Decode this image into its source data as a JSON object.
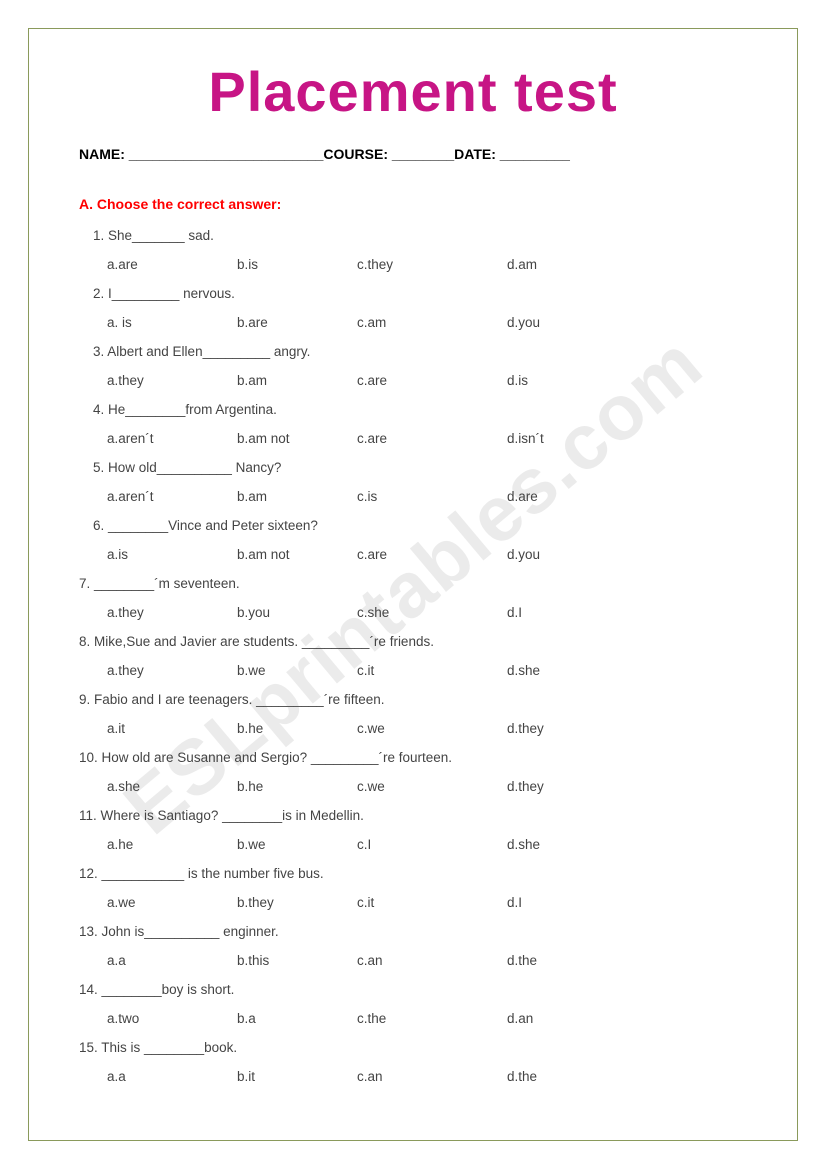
{
  "title": "Placement test",
  "info_line": "NAME: _________________________COURSE: ________DATE: _________",
  "section_header": "A.  Choose the correct answer:",
  "watermark": "ESLprintables.com",
  "colors": {
    "title": "#c71585",
    "section_header": "#ff0000",
    "body_text": "#444444",
    "border": "#8a9a5b",
    "watermark": "rgba(0,0,0,0.08)",
    "background": "#ffffff"
  },
  "fonts": {
    "title_size": 56,
    "body_size": 13.5,
    "info_size": 14
  },
  "questions": [
    {
      "n": "1.",
      "text": "She_______ sad.",
      "indent": true,
      "opts": [
        "a.are",
        "b.is",
        "c.they",
        "d.am"
      ]
    },
    {
      "n": "2.",
      "text": "I_________ nervous.",
      "indent": true,
      "opts": [
        "a. is",
        "b.are",
        "c.am",
        "d.you"
      ]
    },
    {
      "n": "3.",
      "text": "Albert and Ellen_________ angry.",
      "indent": true,
      "opts": [
        "a.they",
        "b.am",
        "c.are",
        "d.is"
      ]
    },
    {
      "n": "4.",
      "text": "He________from Argentina.",
      "indent": true,
      "opts": [
        "a.aren´t",
        "b.am not",
        "c.are",
        "d.isn´t"
      ]
    },
    {
      "n": "5.",
      "text": "How old__________ Nancy?",
      "indent": true,
      "opts": [
        "a.aren´t",
        "b.am",
        "c.is",
        "d.are"
      ]
    },
    {
      "n": "6.",
      "text": "________Vince and Peter sixteen?",
      "indent": true,
      "opts": [
        "a.is",
        "b.am not",
        "c.are",
        "d.you"
      ]
    },
    {
      "n": "7.",
      "text": "________´m seventeen.",
      "indent": false,
      "opts": [
        "a.they",
        "b.you",
        "c.she",
        "d.I"
      ]
    },
    {
      "n": "8.",
      "text": "Mike,Sue and Javier are students. _________´re friends.",
      "indent": false,
      "opts": [
        "a.they",
        "b.we",
        "c.it",
        "d.she"
      ]
    },
    {
      "n": "9.",
      "text": "Fabio and I are teenagers. _________´re fifteen.",
      "indent": false,
      "opts": [
        "a.it",
        "b.he",
        "c.we",
        "d.they"
      ]
    },
    {
      "n": "10.",
      "text": "How old are Susanne and Sergio? _________´re fourteen.",
      "indent": false,
      "opts": [
        "a.she",
        "b.he",
        "c.we",
        "d.they"
      ]
    },
    {
      "n": "11.",
      "text": "Where is Santiago? ________is in Medellin.",
      "indent": false,
      "opts": [
        "a.he",
        "b.we",
        "c.I",
        "d.she"
      ]
    },
    {
      "n": "12.",
      "text": "___________ is the number five bus.",
      "indent": false,
      "opts": [
        "a.we",
        "b.they",
        "c.it",
        "d.I"
      ]
    },
    {
      "n": "13.",
      "text": "John is__________ enginner.",
      "indent": false,
      "opts": [
        "a.a",
        "b.this",
        "c.an",
        "d.the"
      ]
    },
    {
      "n": "14.",
      "text": "________boy is short.",
      "indent": false,
      "opts": [
        "a.two",
        "b.a",
        "c.the",
        "d.an"
      ]
    },
    {
      "n": "15.",
      "text": "This is ________book.",
      "indent": false,
      "opts": [
        "a.a",
        "b.it",
        "c.an",
        "d.the"
      ]
    }
  ]
}
